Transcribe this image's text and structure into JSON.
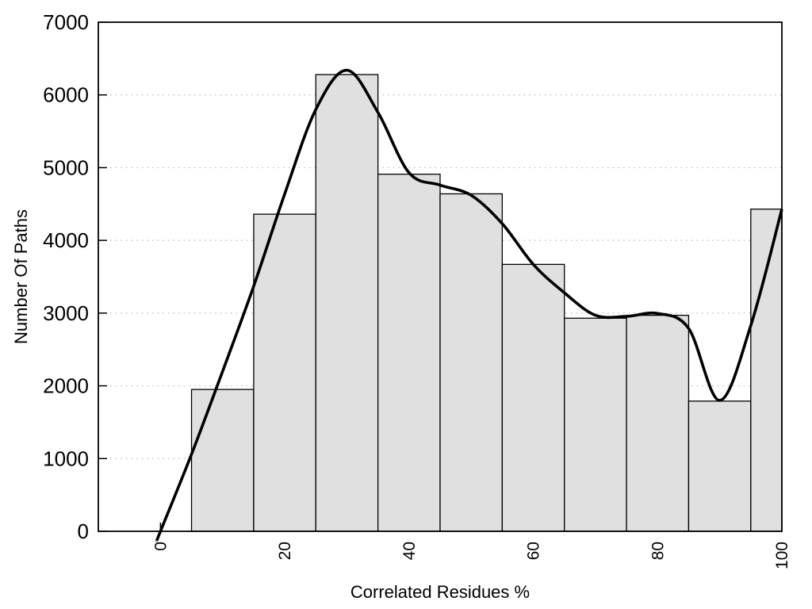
{
  "chart_data": {
    "type": "bar",
    "subtype": "histogram-with-smooth-curve",
    "title": "",
    "xlabel": "Correlated Residues %",
    "ylabel": "Number Of Paths",
    "xlim": [
      -10,
      100
    ],
    "ylim": [
      0,
      7000
    ],
    "x_ticks": [
      0,
      20,
      40,
      60,
      80,
      100
    ],
    "y_ticks": [
      0,
      1000,
      2000,
      3000,
      4000,
      5000,
      6000,
      7000
    ],
    "grid": {
      "horizontal": true,
      "vertical": false,
      "style": "dotted"
    },
    "legend": "none",
    "bars": [
      {
        "x0": 5,
        "x1": 15,
        "count": 1950
      },
      {
        "x0": 15,
        "x1": 25,
        "count": 4360
      },
      {
        "x0": 25,
        "x1": 35,
        "count": 6280
      },
      {
        "x0": 35,
        "x1": 45,
        "count": 4910
      },
      {
        "x0": 45,
        "x1": 55,
        "count": 4640
      },
      {
        "x0": 55,
        "x1": 65,
        "count": 3670
      },
      {
        "x0": 65,
        "x1": 75,
        "count": 2930
      },
      {
        "x0": 75,
        "x1": 85,
        "count": 2970
      },
      {
        "x0": 85,
        "x1": 95,
        "count": 1790
      },
      {
        "x0": 95,
        "x1": 100,
        "count": 4430
      }
    ],
    "curve": {
      "name": "smoothed-frequency-curve",
      "points": [
        [
          -0.6,
          -130
        ],
        [
          0,
          0
        ],
        [
          5,
          1060
        ],
        [
          10,
          2200
        ],
        [
          15,
          3370
        ],
        [
          20,
          4640
        ],
        [
          25,
          5800
        ],
        [
          30,
          6340
        ],
        [
          35,
          5760
        ],
        [
          40,
          4930
        ],
        [
          45,
          4760
        ],
        [
          50,
          4620
        ],
        [
          55,
          4230
        ],
        [
          60,
          3670
        ],
        [
          65,
          3280
        ],
        [
          70,
          2970
        ],
        [
          75,
          2955
        ],
        [
          80,
          2995
        ],
        [
          85,
          2790
        ],
        [
          90,
          1800
        ],
        [
          95,
          2830
        ],
        [
          100,
          4430
        ]
      ]
    },
    "colors": {
      "bar_fill": "#e0e0e0",
      "bar_border": "#000000",
      "curve": "#000000",
      "grid": "#bcbcbc",
      "axis": "#000000",
      "text": "#000000",
      "background": "#ffffff"
    }
  }
}
